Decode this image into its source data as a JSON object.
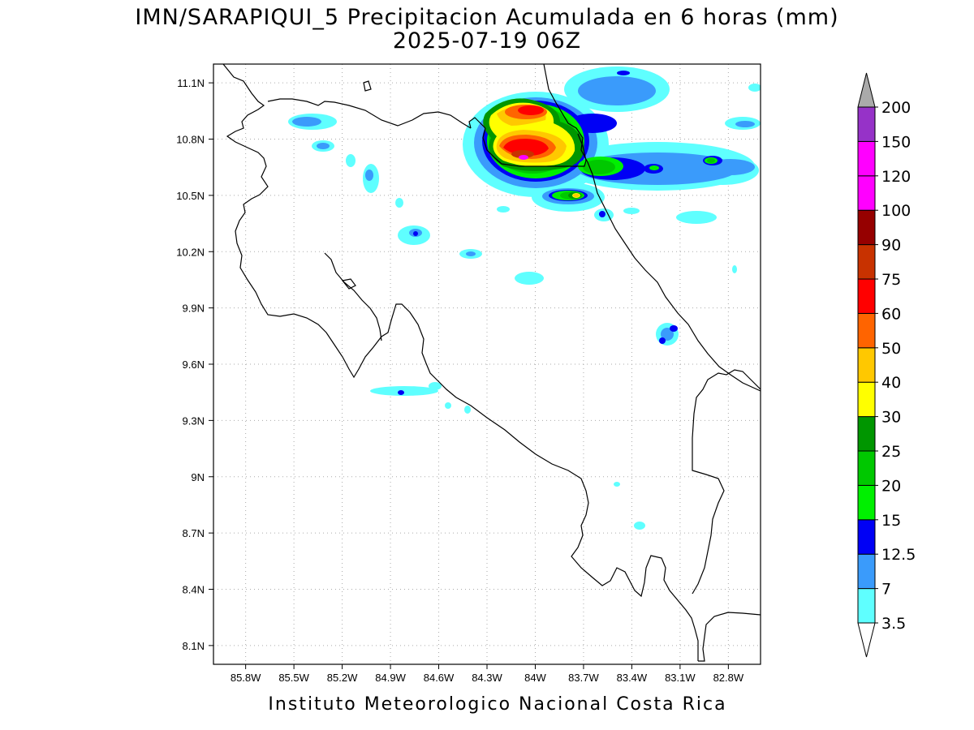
{
  "title_line1": "IMN/SARAPIQUI_5 Precipitacion Acumulada en 6 horas (mm)",
  "title_line2": "2025-07-19 06Z",
  "footer": "Instituto Meteorologico Nacional Costa Rica",
  "map": {
    "lon_range": [
      -86.0,
      -82.6
    ],
    "lat_range": [
      8.0,
      11.2
    ],
    "lon_ticks": [
      {
        "value": -85.8,
        "label": "85.8W"
      },
      {
        "value": -85.5,
        "label": "85.5W"
      },
      {
        "value": -85.2,
        "label": "85.2W"
      },
      {
        "value": -84.9,
        "label": "84.9W"
      },
      {
        "value": -84.6,
        "label": "84.6W"
      },
      {
        "value": -84.3,
        "label": "84.3W"
      },
      {
        "value": -84.0,
        "label": "84W"
      },
      {
        "value": -83.7,
        "label": "83.7W"
      },
      {
        "value": -83.4,
        "label": "83.4W"
      },
      {
        "value": -83.1,
        "label": "83.1W"
      },
      {
        "value": -82.8,
        "label": "82.8W"
      }
    ],
    "lat_ticks": [
      {
        "value": 11.1,
        "label": "11.1N"
      },
      {
        "value": 10.8,
        "label": "10.8N"
      },
      {
        "value": 10.5,
        "label": "10.5N"
      },
      {
        "value": 10.2,
        "label": "10.2N"
      },
      {
        "value": 9.9,
        "label": "9.9N"
      },
      {
        "value": 9.6,
        "label": "9.6N"
      },
      {
        "value": 9.3,
        "label": "9.3N"
      },
      {
        "value": 9.0,
        "label": "9N"
      },
      {
        "value": 8.7,
        "label": "8.7N"
      },
      {
        "value": 8.4,
        "label": "8.4N"
      },
      {
        "value": 8.1,
        "label": "8.1N"
      }
    ]
  },
  "colorbar": {
    "levels": [
      {
        "label": "3.5",
        "color": "#5fffff"
      },
      {
        "label": "7",
        "color": "#3a9bfb"
      },
      {
        "label": "12.5",
        "color": "#0000f5"
      },
      {
        "label": "15",
        "color": "#00f000"
      },
      {
        "label": "20",
        "color": "#00c800"
      },
      {
        "label": "25",
        "color": "#009600"
      },
      {
        "label": "30",
        "color": "#ffff00"
      },
      {
        "label": "40",
        "color": "#ffc800"
      },
      {
        "label": "50",
        "color": "#ff6400"
      },
      {
        "label": "60",
        "color": "#ff0000"
      },
      {
        "label": "75",
        "color": "#c83200"
      },
      {
        "label": "90",
        "color": "#960000"
      },
      {
        "label": "100",
        "color": "#ff00ff"
      },
      {
        "label": "120",
        "color": "#ff00ff"
      },
      {
        "label": "150",
        "color": "#9632c8"
      },
      {
        "label": "200",
        "color": "#f5f5f5"
      }
    ],
    "over_color": "#aaaaaa",
    "under_color": "#ffffff"
  }
}
